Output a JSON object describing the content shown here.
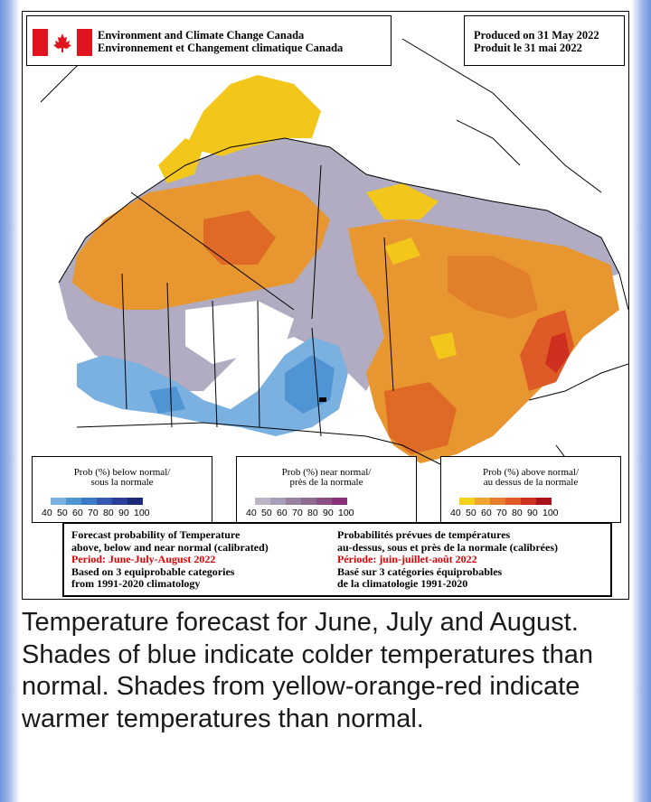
{
  "header": {
    "agency_en": "Environment and Climate Change Canada",
    "agency_fr": "Environnement et Changement climatique Canada",
    "produced_en": "Produced on 31 May 2022",
    "produced_fr": "Produit le 31 mai 2022"
  },
  "legends": [
    {
      "title_en": "Prob (%) below normal/",
      "title_fr": "sous la normale",
      "ticks": [
        "40",
        "50",
        "60",
        "70",
        "80",
        "90",
        "100"
      ],
      "colors": [
        "#7ab1e0",
        "#4f94d3",
        "#3b7ac4",
        "#3457b0",
        "#2a3e98",
        "#1b2a7a"
      ]
    },
    {
      "title_en": "Prob (%) near normal/",
      "title_fr": "près de la normale",
      "ticks": [
        "40",
        "50",
        "60",
        "70",
        "80",
        "90",
        "100"
      ],
      "colors": [
        "#bcb5c8",
        "#a89eb8",
        "#98829e",
        "#8d6a90",
        "#8b4f86",
        "#8a2f7a"
      ]
    },
    {
      "title_en": "Prob (%) above normal/",
      "title_fr": "au dessus de la normale",
      "ticks": [
        "40",
        "50",
        "60",
        "70",
        "80",
        "90",
        "100"
      ],
      "colors": [
        "#f4d21c",
        "#f2a533",
        "#e57d2d",
        "#de5a26",
        "#cf2f1e",
        "#a8121a"
      ]
    }
  ],
  "description": {
    "en_line1": "Forecast probability of Temperature",
    "en_line2": "above, below and near normal (calibrated)",
    "en_period": "Period: June-July-August 2022",
    "en_line3": "Based on 3 equiprobable categories",
    "en_line4": "from 1991-2020 climatology",
    "fr_line1": "Probabilités prévues de températures",
    "fr_line2": "au-dessus, sous et près de la normale (calibrées)",
    "fr_period": "Période: juin-juillet-août 2022",
    "fr_line3": "Basé sur 3 catégories équiprobables",
    "fr_line4": "de la climatologie 1991-2020"
  },
  "caption": "Temperature forecast for June, July and August. Shades of blue indicate colder temperatures than normal. Shades from yellow-orange-red indicate warmer temperatures than normal."
}
